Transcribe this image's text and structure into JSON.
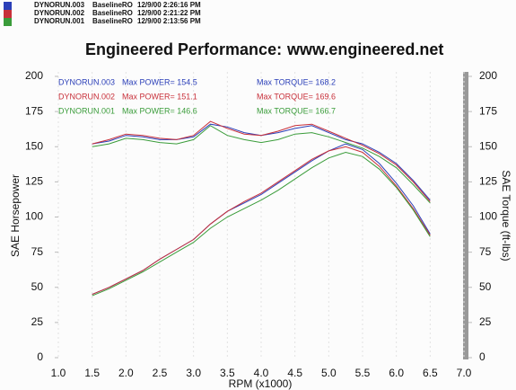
{
  "header": [
    {
      "run": "DYNORUN.003",
      "setup": "BaselineRO",
      "date": "12/9/00 2:26:16 PM",
      "color": "#2b3fb8"
    },
    {
      "run": "DYNORUN.002",
      "setup": "BaselineRO",
      "date": "12/9/00 2:21:22 PM",
      "color": "#c8303a"
    },
    {
      "run": "DYNORUN.001",
      "setup": "BaselineRO",
      "date": "12/9/00 2:13:56 PM",
      "color": "#3a9c3a"
    }
  ],
  "chart_data": {
    "type": "line",
    "title": "Engineered Performance:",
    "subtitle": "www.engineered.net",
    "x_label": "RPM (x1000)",
    "y_label": "SAE Horsepower",
    "y2_label": "SAE Torque (ft-lbs)",
    "x": [
      1.5,
      1.75,
      2.0,
      2.25,
      2.5,
      2.75,
      3.0,
      3.25,
      3.5,
      3.75,
      4.0,
      4.25,
      4.5,
      4.75,
      5.0,
      5.25,
      5.5,
      5.75,
      6.0,
      6.25,
      6.5
    ],
    "xlim": [
      1.0,
      7.0
    ],
    "xticks": [
      {
        "value": 1,
        "label": "1.0"
      },
      1.5,
      {
        "value": 2,
        "label": "2.0"
      },
      2.5,
      {
        "value": 3,
        "label": "3.0"
      },
      3.5,
      {
        "value": 4,
        "label": "4.0"
      },
      4.5,
      {
        "value": 5,
        "label": "5.0"
      },
      5.5,
      {
        "value": 6,
        "label": "6.0"
      },
      6.5,
      {
        "value": 7,
        "label": "7.0"
      }
    ],
    "ylim": [
      0,
      200
    ],
    "yticks": [
      0,
      25,
      50,
      75,
      100,
      125,
      150,
      175,
      200
    ],
    "y2lim": [
      0,
      200
    ],
    "y2ticks": [
      0,
      25,
      50,
      75,
      100,
      125,
      150,
      175,
      200
    ],
    "grid": true,
    "series": [
      {
        "name": "DYNORUN.003",
        "label": "Max POWER= 154.5",
        "color": "#2b3fb8",
        "values": [
          45,
          50,
          56,
          62,
          70,
          77,
          84,
          95,
          104,
          110,
          116,
          124,
          132,
          140,
          147,
          152,
          148,
          138,
          124,
          108,
          88
        ]
      },
      {
        "name": "DYNORUN.002",
        "label": "Max POWER= 151.1",
        "color": "#c8303a",
        "values": [
          45,
          50,
          56,
          62,
          70,
          77,
          84,
          95,
          104,
          111,
          117,
          125,
          133,
          141,
          147,
          150,
          146,
          136,
          122,
          106,
          87
        ]
      },
      {
        "name": "DYNORUN.001",
        "label": "Max POWER= 146.6",
        "color": "#3a9c3a",
        "values": [
          44,
          49,
          55,
          61,
          68,
          75,
          82,
          92,
          100,
          106,
          112,
          119,
          127,
          135,
          142,
          146,
          143,
          134,
          121,
          105,
          86
        ]
      },
      {
        "label": "Max TORQUE= 168.2",
        "axis": "y2",
        "color": "#2b3fb8",
        "values": [
          152,
          154,
          158,
          157,
          155,
          155,
          157,
          166,
          164,
          160,
          158,
          160,
          163,
          165,
          160,
          155,
          152,
          146,
          138,
          126,
          112
        ]
      },
      {
        "label": "Max TORQUE= 169.6",
        "axis": "y2",
        "color": "#c8303a",
        "values": [
          152,
          155,
          159,
          158,
          156,
          155,
          158,
          168,
          163,
          159,
          158,
          161,
          165,
          166,
          161,
          156,
          151,
          145,
          137,
          125,
          111
        ]
      },
      {
        "label": "Max TORQUE= 166.7",
        "axis": "y2",
        "color": "#3a9c3a",
        "values": [
          150,
          152,
          156,
          155,
          153,
          152,
          155,
          165,
          158,
          155,
          153,
          155,
          159,
          160,
          157,
          153,
          149,
          143,
          135,
          123,
          110
        ]
      }
    ]
  }
}
